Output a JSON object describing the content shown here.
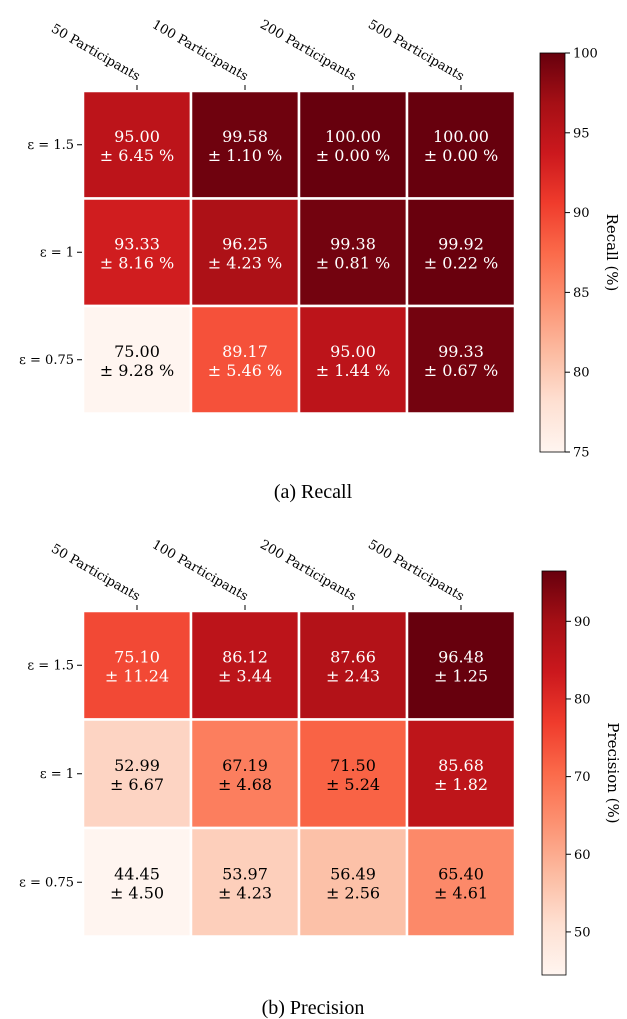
{
  "chart_data": [
    {
      "type": "heatmap",
      "caption": "(a) Recall",
      "columns": [
        "50 Participants",
        "100 Participants",
        "200 Participants",
        "500 Participants"
      ],
      "rows": [
        "ε = 1.5",
        "ε = 1",
        "ε = 0.75"
      ],
      "values": [
        [
          95.0,
          99.58,
          100.0,
          100.0
        ],
        [
          93.33,
          96.25,
          99.38,
          99.92
        ],
        [
          75.0,
          89.17,
          95.0,
          99.33
        ]
      ],
      "std": [
        [
          6.45,
          1.1,
          0.0,
          0.0
        ],
        [
          8.16,
          4.23,
          0.81,
          0.22
        ],
        [
          9.28,
          5.46,
          1.44,
          0.67
        ]
      ],
      "mean_labels": [
        [
          "95.00",
          "99.58",
          "100.00",
          "100.00"
        ],
        [
          "93.33",
          "96.25",
          "99.38",
          "99.92"
        ],
        [
          "75.00",
          "89.17",
          "95.00",
          "99.33"
        ]
      ],
      "std_labels": [
        [
          "± 6.45 %",
          "± 1.10 %",
          "± 0.00 %",
          "± 0.00 %"
        ],
        [
          "± 8.16 %",
          "± 4.23 %",
          "± 0.81 %",
          "± 0.22 %"
        ],
        [
          "± 9.28 %",
          "± 5.46 %",
          "± 1.44 %",
          "± 0.67 %"
        ]
      ],
      "colorbar": {
        "label": "Recall (%)",
        "range": [
          75,
          100
        ],
        "ticks": [
          "75",
          "80",
          "85",
          "90",
          "95",
          "100"
        ],
        "colormap": "Reds"
      }
    },
    {
      "type": "heatmap",
      "caption": "(b) Precision",
      "columns": [
        "50 Participants",
        "100 Participants",
        "200 Participants",
        "500 Participants"
      ],
      "rows": [
        "ε = 1.5",
        "ε = 1",
        "ε = 0.75"
      ],
      "values": [
        [
          75.1,
          86.12,
          87.66,
          96.48
        ],
        [
          52.99,
          67.19,
          71.5,
          85.68
        ],
        [
          44.45,
          53.97,
          56.49,
          65.4
        ]
      ],
      "std": [
        [
          11.24,
          3.44,
          2.43,
          1.25
        ],
        [
          6.67,
          4.68,
          5.24,
          1.82
        ],
        [
          4.5,
          4.23,
          2.56,
          4.61
        ]
      ],
      "mean_labels": [
        [
          "75.10",
          "86.12",
          "87.66",
          "96.48"
        ],
        [
          "52.99",
          "67.19",
          "71.50",
          "85.68"
        ],
        [
          "44.45",
          "53.97",
          "56.49",
          "65.40"
        ]
      ],
      "std_labels": [
        [
          "± 11.24",
          "± 3.44",
          "± 2.43",
          "± 1.25"
        ],
        [
          "± 6.67",
          "± 4.68",
          "± 5.24",
          "± 1.82"
        ],
        [
          "± 4.50",
          "± 4.23",
          "± 2.56",
          "± 4.61"
        ]
      ],
      "colorbar": {
        "label": "Precision (%)",
        "range": [
          44.45,
          96.48
        ],
        "ticks": [
          "50",
          "60",
          "70",
          "80",
          "90"
        ],
        "colormap": "Reds"
      }
    }
  ]
}
